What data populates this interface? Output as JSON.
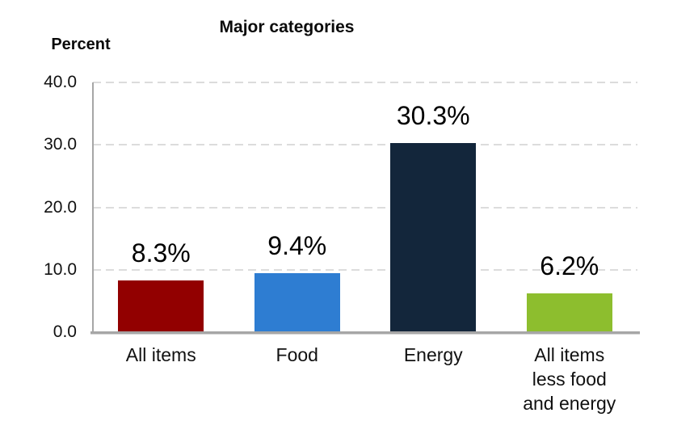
{
  "chart_data": {
    "type": "bar",
    "title": "Major categories",
    "ylabel": "Percent",
    "xlabel": "",
    "categories": [
      "All items",
      "Food",
      "Energy",
      "All items less food and energy"
    ],
    "category_lines": [
      [
        "All items"
      ],
      [
        "Food"
      ],
      [
        "Energy"
      ],
      [
        "All items",
        "less food",
        "and energy"
      ]
    ],
    "values": [
      8.3,
      9.4,
      30.3,
      6.2
    ],
    "value_labels": [
      "8.3%",
      "9.4%",
      "30.3%",
      "6.2%"
    ],
    "bar_colors": [
      "#920000",
      "#2E7DD2",
      "#13263B",
      "#8DBE2E"
    ],
    "ylim": [
      0,
      40
    ],
    "yticks": [
      0,
      10,
      20,
      30,
      40
    ],
    "ytick_labels": [
      "0.0",
      "10.0",
      "20.0",
      "30.0",
      "40.0"
    ],
    "grid": "horizontal dashed",
    "gridline_color": "#DCDCDC",
    "axis_color": "#A6A6A6",
    "legend": "none",
    "background_color": "#FFFFFF"
  }
}
